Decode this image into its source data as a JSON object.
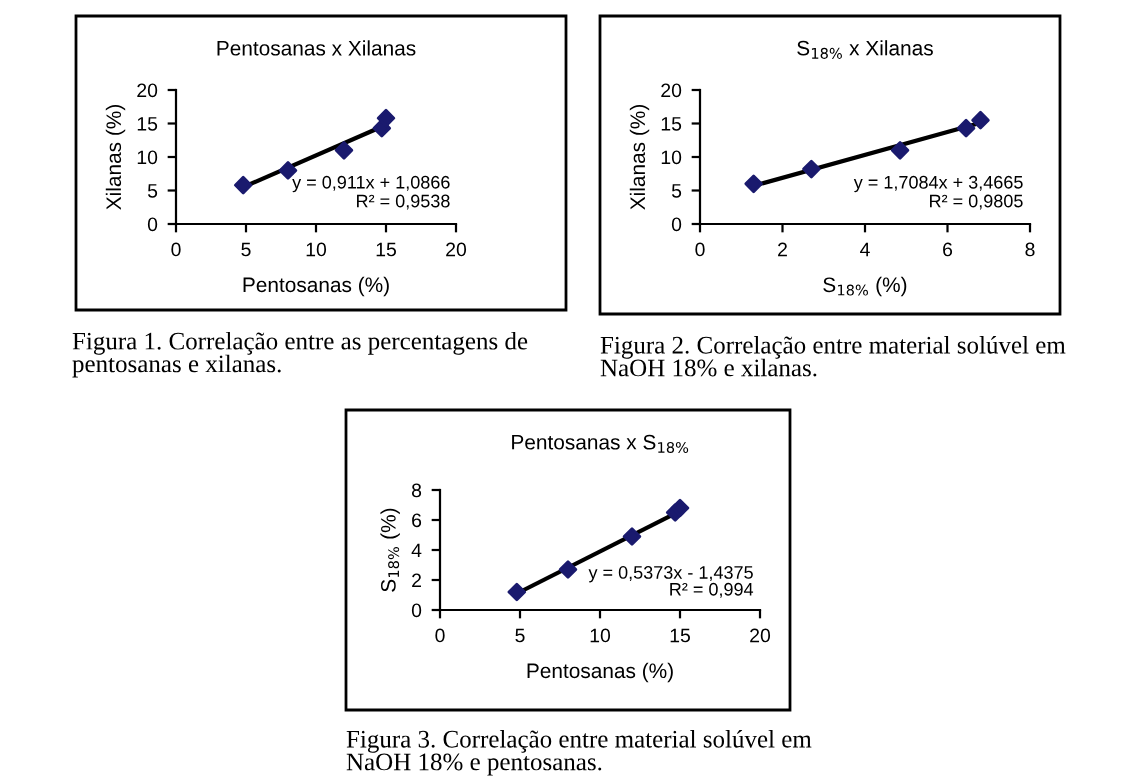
{
  "chart_data": [
    {
      "type": "scatter",
      "title": "Pentosanas x Xilanas",
      "xlabel": "Pentosanas (%)",
      "ylabel": "Xilanas (%)",
      "xlim": [
        0,
        20
      ],
      "xticks": [
        0,
        5,
        10,
        15,
        20
      ],
      "ylim": [
        0,
        20
      ],
      "yticks": [
        0,
        5,
        10,
        15,
        20
      ],
      "series": [
        {
          "color": "#1a1a6e",
          "marker": "diamond",
          "x": [
            4.8,
            8,
            12,
            14.7,
            15
          ],
          "values": [
            5.8,
            8,
            11,
            14.3,
            15.8
          ]
        },
        {
          "type": "line",
          "marker": "none",
          "color": "#000000",
          "x": [
            4.8,
            15
          ],
          "values": [
            5.5,
            14.8
          ]
        }
      ],
      "annotations": [
        "y = 0,911x + 1,0866",
        "R² = 0,9538",
        "Figura 1. Correlação entre as percentagens de pentosanas e xilanas."
      ]
    },
    {
      "type": "scatter",
      "title": "S$_{18%}$ x Xilanas",
      "xlabel": "S$_{18%}$ (%)",
      "ylabel": "Xilanas (%)",
      "xlim": [
        0,
        8
      ],
      "xticks": [
        0,
        2,
        4,
        6,
        8
      ],
      "ylim": [
        0,
        20
      ],
      "yticks": [
        0,
        5,
        10,
        15,
        20
      ],
      "series": [
        {
          "color": "#1a1a6e",
          "marker": "diamond",
          "x": [
            1.3,
            2.7,
            4.85,
            6.45,
            6.8
          ],
          "values": [
            6,
            8.2,
            11,
            14.3,
            15.5
          ]
        },
        {
          "type": "line",
          "marker": "none",
          "color": "#000000",
          "x": [
            1.3,
            6.8
          ],
          "values": [
            5.7,
            15.1
          ]
        }
      ],
      "annotations": [
        "y = 1,7084x + 3,4665",
        "R² = 0,9805",
        "Figura 2. Correlação entre material solúvel em NaOH 18% e xilanas."
      ]
    },
    {
      "type": "scatter",
      "title": "Pentosanas x S$_{18%}$",
      "xlabel": "Pentosanas (%)",
      "ylabel": "S$_{18%}$ (%)",
      "xlim": [
        0,
        20
      ],
      "xticks": [
        0,
        5,
        10,
        15,
        20
      ],
      "ylim": [
        0,
        8
      ],
      "yticks": [
        0,
        2,
        4,
        6,
        8
      ],
      "series": [
        {
          "color": "#1a1a6e",
          "marker": "diamond",
          "x": [
            4.8,
            8,
            12,
            14.7,
            15
          ],
          "values": [
            1.2,
            2.7,
            4.9,
            6.5,
            6.8
          ]
        },
        {
          "type": "line",
          "marker": "none",
          "color": "#000000",
          "x": [
            4.8,
            15
          ],
          "values": [
            1.1,
            6.6
          ]
        }
      ],
      "annotations": [
        "y = 0,5373x - 1,4375",
        "R² = 0,994",
        "Figura 3. Correlação entre material solúvel em NaOH 18% e pentosanas."
      ]
    }
  ]
}
